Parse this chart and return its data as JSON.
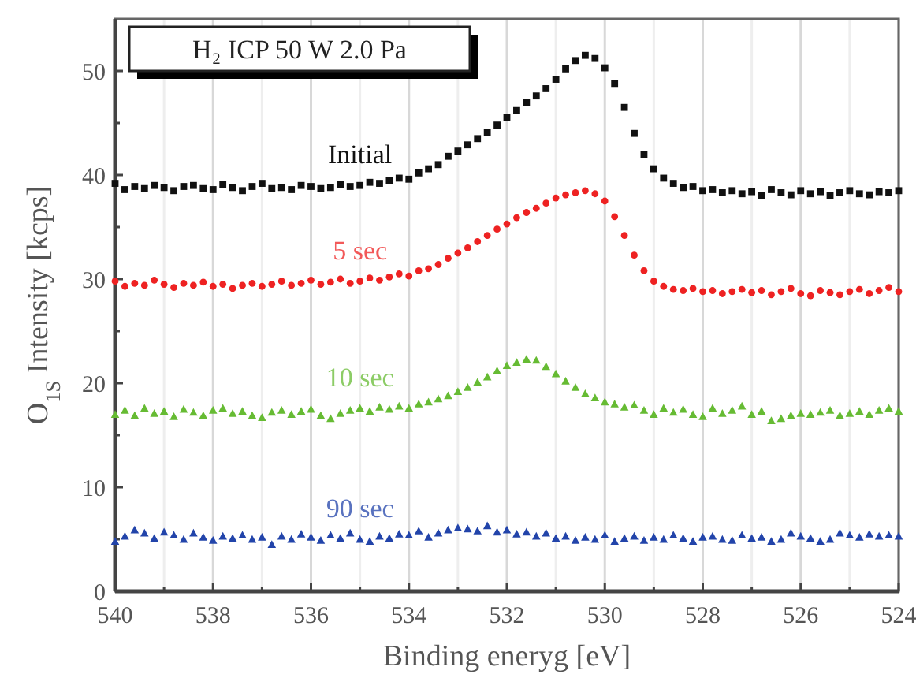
{
  "chart_data": {
    "type": "scatter",
    "title": "H₂ ICP 50 W 2.0 Pa",
    "xlabel": "Binding eneryg [eV]",
    "ylabel": "O$_{1S}$ Intensity [kcps]",
    "xlim": [
      540,
      524
    ],
    "ylim": [
      0,
      55
    ],
    "xticks": [
      540,
      {
        "value": 539,
        "label": null
      },
      538,
      {
        "value": 537,
        "label": null
      },
      536,
      {
        "value": 535,
        "label": null
      },
      534,
      {
        "value": 533,
        "label": null
      },
      532,
      {
        "value": 531,
        "label": null
      },
      530,
      {
        "value": 529,
        "label": null
      },
      528,
      {
        "value": 527,
        "label": null
      },
      526,
      {
        "value": 525,
        "label": null
      },
      524
    ],
    "yticks": [
      0,
      {
        "value": 5,
        "label": null
      },
      10,
      {
        "value": 15,
        "label": null
      },
      20,
      {
        "value": 25,
        "label": null
      },
      30,
      {
        "value": 35,
        "label": null
      },
      40,
      {
        "value": 45,
        "label": null
      },
      50
    ],
    "grid": "x",
    "x": [
      540,
      539.8,
      539.6,
      539.4,
      539.2,
      539,
      538.8,
      538.6,
      538.4,
      538.2,
      538,
      537.8,
      537.6,
      537.4,
      537.2,
      537,
      536.8,
      536.6,
      536.4,
      536.2,
      536,
      535.8,
      535.6,
      535.4,
      535.2,
      535,
      534.8,
      534.6,
      534.4,
      534.2,
      534,
      533.8,
      533.6,
      533.4,
      533.2,
      533,
      532.8,
      532.6,
      532.4,
      532.2,
      532,
      531.8,
      531.6,
      531.4,
      531.2,
      531,
      530.8,
      530.6,
      530.4,
      530.2,
      530,
      529.8,
      529.6,
      529.4,
      529.2,
      529,
      528.8,
      528.6,
      528.4,
      528.2,
      528,
      527.8,
      527.6,
      527.4,
      527.2,
      527,
      526.8,
      526.6,
      526.4,
      526.2,
      526,
      525.8,
      525.6,
      525.4,
      525.2,
      525,
      524.8,
      524.6,
      524.4,
      524.2,
      524
    ],
    "series": [
      {
        "name": "Initial",
        "color": "#111111",
        "marker": "square",
        "values": [
          39.2,
          38.6,
          38.9,
          38.7,
          39.0,
          38.8,
          38.5,
          38.9,
          39.0,
          38.7,
          38.6,
          39.1,
          38.8,
          38.5,
          38.9,
          39.2,
          38.7,
          38.8,
          38.6,
          39.0,
          38.9,
          38.7,
          38.8,
          39.1,
          38.9,
          39.0,
          39.3,
          39.2,
          39.5,
          39.7,
          39.6,
          40.2,
          40.6,
          41.0,
          41.8,
          42.3,
          42.9,
          43.5,
          44.1,
          44.8,
          45.5,
          46.2,
          47.0,
          47.6,
          48.3,
          49.2,
          50.2,
          51.0,
          51.5,
          51.2,
          50.3,
          48.8,
          46.5,
          44.0,
          42.0,
          40.6,
          39.7,
          39.2,
          38.8,
          38.9,
          38.5,
          38.6,
          38.3,
          38.5,
          38.2,
          38.4,
          38.0,
          38.6,
          38.3,
          38.1,
          38.5,
          38.2,
          38.4,
          38.0,
          38.3,
          38.5,
          38.2,
          38.1,
          38.4,
          38.3,
          38.5
        ]
      },
      {
        "name": "5 sec",
        "color": "#ee2222",
        "marker": "circle",
        "values": [
          29.8,
          29.3,
          29.6,
          29.4,
          29.9,
          29.5,
          29.2,
          29.6,
          29.4,
          29.7,
          29.3,
          29.5,
          29.1,
          29.4,
          29.6,
          29.3,
          29.5,
          29.8,
          29.4,
          29.6,
          29.9,
          29.5,
          29.7,
          30.0,
          29.6,
          29.8,
          30.1,
          29.9,
          30.2,
          30.5,
          30.3,
          30.8,
          31.0,
          31.4,
          32.0,
          32.5,
          33.0,
          33.6,
          34.2,
          34.8,
          35.3,
          35.9,
          36.4,
          36.8,
          37.3,
          37.8,
          38.1,
          38.3,
          38.5,
          38.2,
          37.5,
          36.0,
          34.2,
          32.3,
          30.8,
          29.8,
          29.3,
          29.0,
          28.9,
          29.1,
          28.8,
          28.9,
          28.6,
          28.8,
          29.0,
          28.7,
          28.9,
          28.5,
          28.8,
          29.1,
          28.6,
          28.4,
          28.9,
          28.7,
          28.5,
          28.8,
          29.0,
          28.6,
          28.9,
          29.2,
          28.8
        ]
      },
      {
        "name": "10 sec",
        "color": "#66bb33",
        "marker": "triangle",
        "values": [
          17.0,
          17.4,
          16.9,
          17.6,
          17.1,
          17.3,
          16.8,
          17.5,
          17.2,
          16.9,
          17.4,
          17.6,
          17.1,
          17.3,
          16.9,
          16.7,
          17.2,
          17.4,
          17.0,
          17.3,
          17.5,
          16.9,
          16.6,
          17.1,
          17.4,
          17.6,
          17.3,
          17.7,
          17.5,
          17.8,
          17.6,
          18.0,
          18.2,
          18.5,
          18.8,
          19.2,
          19.6,
          20.1,
          20.6,
          21.2,
          21.7,
          22.0,
          22.3,
          22.2,
          21.6,
          20.9,
          20.2,
          19.6,
          19.0,
          18.6,
          18.2,
          18.0,
          17.7,
          17.9,
          17.4,
          17.0,
          17.6,
          17.2,
          17.5,
          17.0,
          16.8,
          17.6,
          17.1,
          17.4,
          17.8,
          17.0,
          17.3,
          16.4,
          16.6,
          16.9,
          17.1,
          17.0,
          17.2,
          17.4,
          16.9,
          17.1,
          17.3,
          17.0,
          17.4,
          17.6,
          17.3
        ]
      },
      {
        "name": "90 sec",
        "color": "#2244aa",
        "marker": "triangle",
        "values": [
          4.8,
          5.3,
          5.9,
          5.6,
          5.1,
          5.7,
          5.4,
          5.0,
          5.6,
          5.2,
          4.9,
          5.3,
          5.1,
          5.4,
          5.0,
          5.2,
          4.5,
          5.3,
          5.0,
          5.5,
          5.2,
          4.9,
          5.4,
          5.1,
          5.6,
          5.0,
          4.8,
          5.3,
          5.1,
          5.5,
          5.4,
          5.8,
          5.2,
          5.6,
          5.9,
          6.1,
          6.0,
          5.8,
          6.3,
          5.7,
          5.9,
          5.5,
          5.7,
          5.3,
          5.6,
          5.1,
          5.3,
          4.9,
          5.2,
          5.0,
          5.4,
          4.8,
          5.1,
          5.3,
          4.9,
          5.2,
          5.0,
          5.4,
          5.1,
          4.8,
          5.2,
          5.3,
          5.0,
          4.9,
          5.4,
          5.1,
          5.2,
          4.8,
          5.0,
          5.6,
          5.3,
          5.1,
          4.8,
          5.0,
          5.6,
          5.4,
          5.2,
          5.5,
          5.3,
          5.4,
          5.3
        ]
      }
    ]
  }
}
